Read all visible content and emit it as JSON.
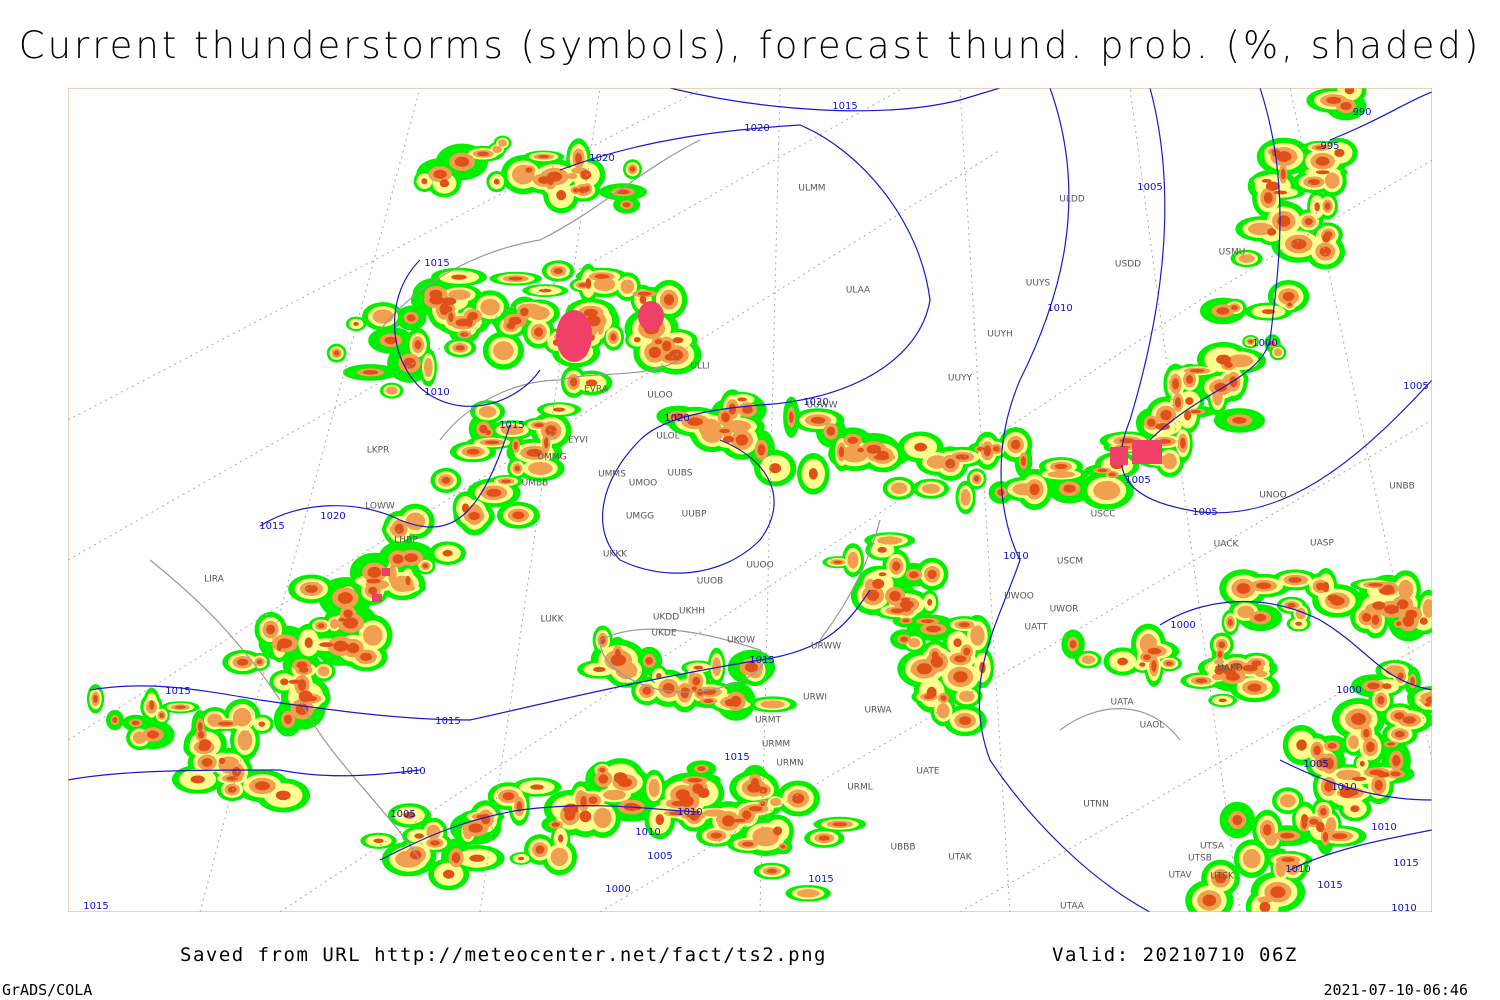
{
  "title": "Current thunderstorms (symbols), forecast thund. prob. (%, shaded)",
  "map": {
    "isobar_labels": [
      "1015",
      "1020",
      "1020",
      "990",
      "995",
      "1005",
      "1015",
      "1010",
      "1000",
      "1010",
      "1005",
      "1020",
      "1020",
      "1015",
      "1005",
      "1005",
      "1020",
      "1015",
      "1010",
      "1000",
      "1015",
      "1000",
      "1015",
      "1015",
      "1015",
      "1005",
      "1010",
      "1010",
      "1005",
      "1010",
      "1010",
      "1010",
      "1005",
      "1015",
      "1010",
      "1015",
      "1015",
      "1000",
      "1015",
      "1010"
    ],
    "station_labels": [
      "ULMM",
      "ULDD",
      "USDD",
      "USMU",
      "ULAA",
      "UUYS",
      "UUYH",
      "UUYY",
      "ULLI",
      "ULOO",
      "ULOL",
      "UUBS",
      "UMMS",
      "UMOO",
      "UUWW",
      "UMGG",
      "UUBP",
      "UUOO",
      "UUOB",
      "UKKK",
      "UMBB",
      "UMMG",
      "EYVI",
      "EVRA",
      "LKPR",
      "LOWW",
      "LHBP",
      "LIRA",
      "LUKK",
      "UKHH",
      "UKDD",
      "UKDE",
      "UKOW",
      "URWW",
      "URWA",
      "URWI",
      "URMT",
      "URMM",
      "URMN",
      "URML",
      "UBBB",
      "UTAK",
      "UATE",
      "UATT",
      "UWOO",
      "UWOR",
      "USCM",
      "UACK",
      "UASP",
      "UNOO",
      "UNBB",
      "UATA",
      "UAOL",
      "UTNN",
      "UTSA",
      "UTSB",
      "UTAV",
      "UTAA",
      "UTSK",
      "USCC",
      "UAKD"
    ]
  },
  "footer": {
    "source": "Saved from URL http://meteocenter.net/fact/ts2.png",
    "valid": "Valid: 20210710 06Z",
    "software": "GrADS/COLA",
    "timestamp": "2021-07-10-06:46"
  }
}
